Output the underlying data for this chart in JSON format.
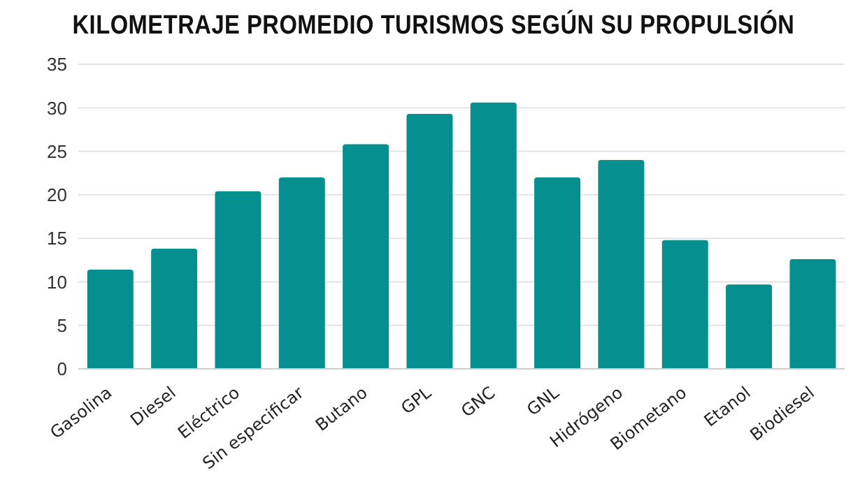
{
  "chart_data": {
    "type": "bar",
    "title": "KILOMETRAJE PROMEDIO TURISMOS SEGÚN SU PROPULSIÓN",
    "categories": [
      "Gasolina",
      "Diesel",
      "Eléctrico",
      "Sin especificar",
      "Butano",
      "GPL",
      "GNC",
      "GNL",
      "Hidrógeno",
      "Biometano",
      "Etanol",
      "Biodiesel"
    ],
    "values": [
      11.4,
      13.8,
      20.4,
      22,
      25.8,
      29.3,
      30.6,
      22,
      24,
      14.8,
      9.7,
      12.6
    ],
    "color": "#05908f",
    "ylim": [
      0,
      35
    ],
    "yticks": [
      0,
      5,
      10,
      15,
      20,
      25,
      30,
      35
    ],
    "grid": "y"
  }
}
